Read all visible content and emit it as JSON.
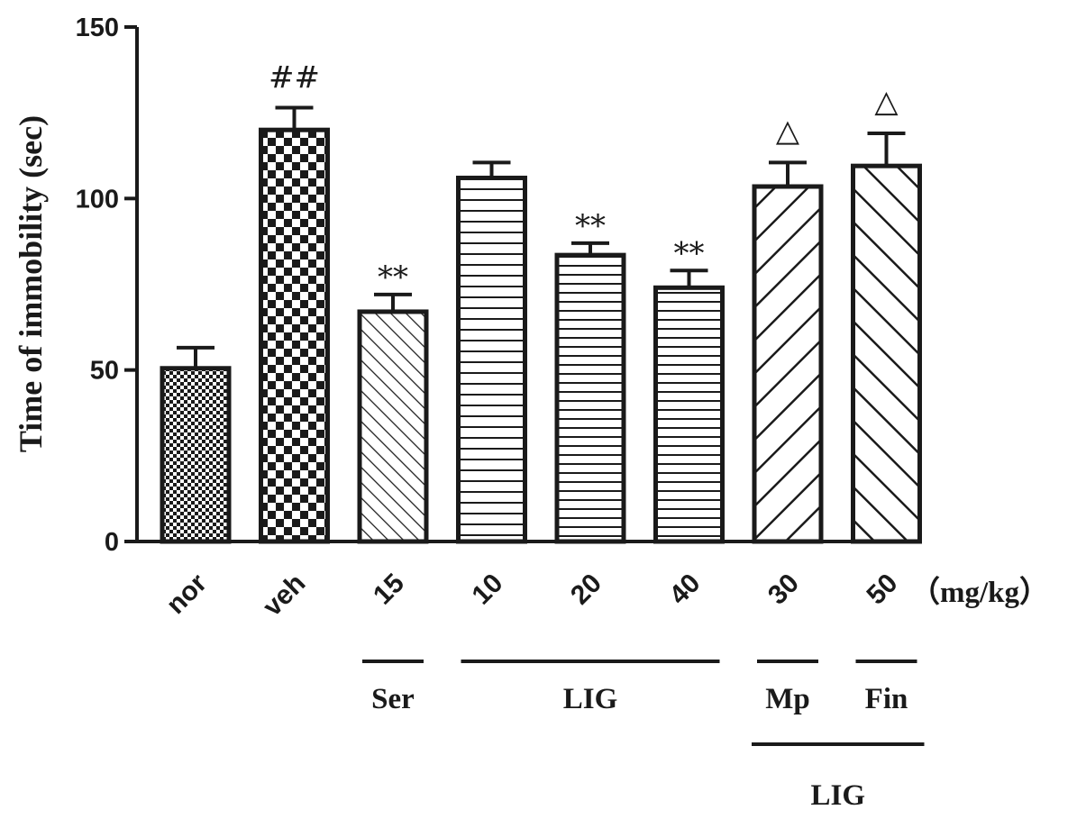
{
  "chart_data": {
    "type": "bar",
    "ylabel": "Time of immobility (sec)",
    "xlabel": "",
    "ylim": [
      0,
      150
    ],
    "yticks": [
      0,
      50,
      100,
      150
    ],
    "unit_label": "（mg/kg）",
    "categories": [
      "nor",
      "veh",
      "15",
      "10",
      "20",
      "40",
      "30",
      "50"
    ],
    "values": [
      50.5,
      120,
      67,
      106,
      83.5,
      74,
      103.5,
      109.5
    ],
    "errors": [
      6,
      6.5,
      5,
      4.5,
      3.5,
      5,
      7,
      9.5
    ],
    "annotations": [
      "",
      "##",
      "**",
      "",
      "**",
      "**",
      "△",
      "△"
    ],
    "patterns": [
      "dots",
      "checker",
      "diag-back",
      "hlines-wide",
      "hlines",
      "hlines",
      "diag-forward",
      "diag-back-wide"
    ],
    "groups": [
      {
        "label": "Ser",
        "from": 2,
        "to": 2,
        "level": 1
      },
      {
        "label": "LIG",
        "from": 3,
        "to": 5,
        "level": 1
      },
      {
        "label": "Mp",
        "from": 6,
        "to": 6,
        "level": 1
      },
      {
        "label": "Fin",
        "from": 7,
        "to": 7,
        "level": 1
      },
      {
        "label": "LIG",
        "from": 6,
        "to": 7,
        "level": 2
      }
    ],
    "grid": false,
    "colors": {
      "ink": "#1a1a1a",
      "background": "#ffffff"
    }
  }
}
